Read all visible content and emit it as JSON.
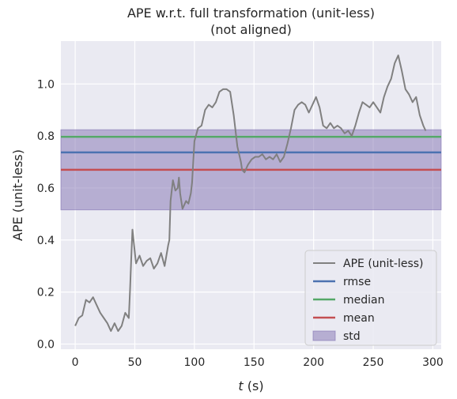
{
  "chart_data": {
    "type": "line",
    "title": "APE w.r.t. full transformation (unit-less)",
    "subtitle": "(not aligned)",
    "xlabel_italic": "t",
    "xlabel_rest": " (s)",
    "ylabel": "APE (unit-less)",
    "xlim": [
      -12,
      307
    ],
    "ylim": [
      -0.02,
      1.165
    ],
    "xticks": [
      0,
      50,
      100,
      150,
      200,
      250,
      300
    ],
    "yticks": [
      0.0,
      0.2,
      0.4,
      0.6,
      0.8,
      1.0
    ],
    "ytick_labels": [
      "0.0",
      "0.2",
      "0.4",
      "0.6",
      "0.8",
      "1.0"
    ],
    "grid": true,
    "legend_position": "lower-right",
    "colors": {
      "background": "#eaeaf2",
      "grid": "#ffffff",
      "ape": "#808080",
      "rmse": "#4c72b0",
      "median": "#55a868",
      "mean": "#c44e52",
      "std": "#8172b2"
    },
    "stats": {
      "rmse": 0.737,
      "median": 0.797,
      "mean": 0.67,
      "std": 0.154
    },
    "series": [
      {
        "name": "APE (unit-less)",
        "x": [
          0,
          3,
          6,
          9,
          12,
          15,
          18,
          21,
          24,
          27,
          30,
          33,
          36,
          39,
          42,
          45,
          46,
          47,
          48,
          51,
          54,
          57,
          60,
          63,
          66,
          69,
          72,
          75,
          78,
          79,
          80,
          82,
          84,
          86,
          87,
          88,
          90,
          93,
          95,
          97,
          98,
          99,
          100,
          103,
          106,
          109,
          112,
          115,
          118,
          121,
          124,
          127,
          130,
          133,
          136,
          139,
          140,
          142,
          145,
          148,
          151,
          154,
          157,
          160,
          163,
          166,
          169,
          172,
          175,
          178,
          181,
          184,
          187,
          190,
          193,
          196,
          199,
          202,
          205,
          208,
          211,
          214,
          217,
          220,
          223,
          226,
          229,
          232,
          235,
          238,
          241,
          244,
          247,
          250,
          253,
          256,
          259,
          262,
          265,
          268,
          271,
          274,
          277,
          280,
          283,
          286,
          289,
          292,
          294
        ],
        "y": [
          0.07,
          0.1,
          0.11,
          0.17,
          0.16,
          0.18,
          0.15,
          0.12,
          0.1,
          0.08,
          0.05,
          0.08,
          0.05,
          0.07,
          0.12,
          0.1,
          0.21,
          0.33,
          0.44,
          0.31,
          0.34,
          0.3,
          0.32,
          0.33,
          0.29,
          0.31,
          0.35,
          0.3,
          0.38,
          0.4,
          0.55,
          0.63,
          0.59,
          0.6,
          0.64,
          0.58,
          0.52,
          0.55,
          0.54,
          0.58,
          0.62,
          0.7,
          0.78,
          0.83,
          0.84,
          0.9,
          0.92,
          0.91,
          0.93,
          0.97,
          0.98,
          0.98,
          0.97,
          0.88,
          0.76,
          0.7,
          0.67,
          0.66,
          0.69,
          0.71,
          0.72,
          0.72,
          0.73,
          0.71,
          0.72,
          0.71,
          0.73,
          0.7,
          0.72,
          0.77,
          0.83,
          0.9,
          0.92,
          0.93,
          0.92,
          0.89,
          0.92,
          0.95,
          0.91,
          0.84,
          0.83,
          0.85,
          0.83,
          0.84,
          0.83,
          0.81,
          0.82,
          0.8,
          0.84,
          0.89,
          0.93,
          0.92,
          0.91,
          0.93,
          0.91,
          0.89,
          0.95,
          0.99,
          1.02,
          1.08,
          1.11,
          1.05,
          0.98,
          0.96,
          0.93,
          0.95,
          0.88,
          0.84,
          0.82
        ]
      }
    ],
    "legend": [
      "APE (unit-less)",
      "rmse",
      "median",
      "mean",
      "std"
    ]
  }
}
